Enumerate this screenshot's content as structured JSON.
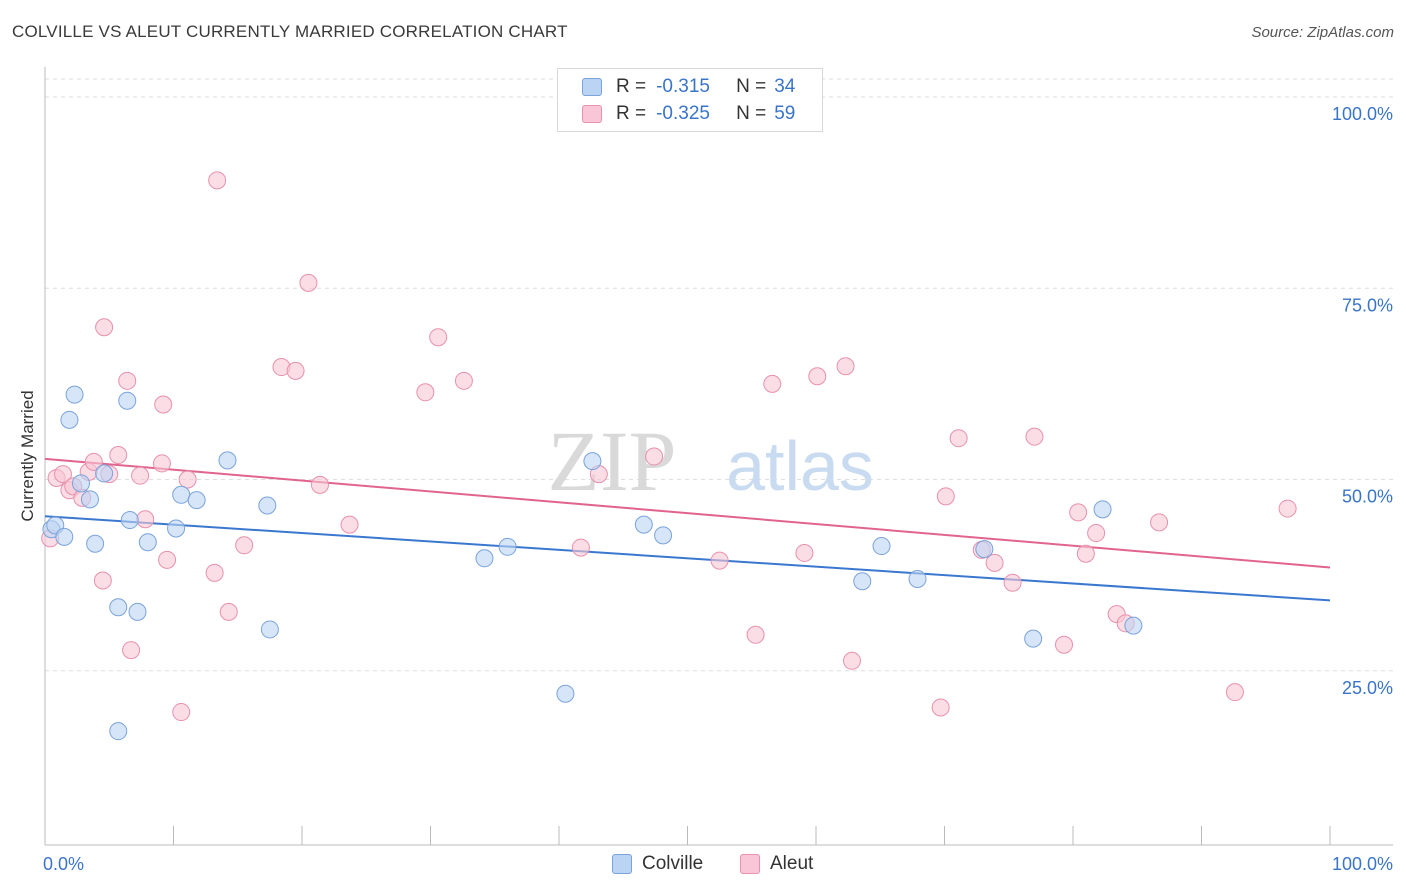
{
  "title": "COLVILLE VS ALEUT CURRENTLY MARRIED CORRELATION CHART",
  "source": "Source: ZipAtlas.com",
  "watermark": {
    "zip": "ZIP",
    "atlas": "atlas"
  },
  "legend": {
    "r_label": "R =",
    "n_label": "N =",
    "rows": [
      {
        "r": "-0.315",
        "n": "34"
      },
      {
        "r": "-0.325",
        "n": "59"
      }
    ]
  },
  "colors": {
    "colville_fill": "#bcd4f3",
    "colville_stroke": "#7aa3db",
    "colville_line": "#3a78cf",
    "aleut_fill": "#f8c6d6",
    "aleut_stroke": "#e891ad",
    "aleut_line": "#e0648d",
    "tick_label": "#3a74c9",
    "grid": "#dedede"
  },
  "chart_data": {
    "type": "scatter",
    "xlabel": "",
    "ylabel": "Currently Married",
    "xlim": [
      0,
      100
    ],
    "ylim": [
      0,
      100
    ],
    "x_tick_labels": [
      "0.0%",
      "100.0%"
    ],
    "y_ticks": [
      25,
      50,
      75,
      100
    ],
    "y_tick_labels": [
      "25.0%",
      "50.0%",
      "75.0%",
      "100.0%"
    ],
    "grid": true,
    "legend_position": "top-center",
    "series": [
      {
        "name": "Colville",
        "trend": [
          [
            0,
            45.2
          ],
          [
            100,
            34.2
          ]
        ],
        "points": [
          [
            0.5,
            43.5
          ],
          [
            0.8,
            44.0
          ],
          [
            1.5,
            42.5
          ],
          [
            1.9,
            57.8
          ],
          [
            2.3,
            61.1
          ],
          [
            2.8,
            49.5
          ],
          [
            3.5,
            47.4
          ],
          [
            3.9,
            41.6
          ],
          [
            4.6,
            50.8
          ],
          [
            5.7,
            33.3
          ],
          [
            5.7,
            17.1
          ],
          [
            6.4,
            60.3
          ],
          [
            6.6,
            44.7
          ],
          [
            7.2,
            32.7
          ],
          [
            8.0,
            41.8
          ],
          [
            10.2,
            43.6
          ],
          [
            10.6,
            48.0
          ],
          [
            11.8,
            47.3
          ],
          [
            14.2,
            52.5
          ],
          [
            17.3,
            46.6
          ],
          [
            17.5,
            30.4
          ],
          [
            34.2,
            39.7
          ],
          [
            36.0,
            41.2
          ],
          [
            40.5,
            22.0
          ],
          [
            42.6,
            52.4
          ],
          [
            46.6,
            44.1
          ],
          [
            48.1,
            42.7
          ],
          [
            63.6,
            36.7
          ],
          [
            65.1,
            41.3
          ],
          [
            67.9,
            37.0
          ],
          [
            73.1,
            40.9
          ],
          [
            76.9,
            29.2
          ],
          [
            82.3,
            46.1
          ],
          [
            84.7,
            30.9
          ]
        ]
      },
      {
        "name": "Aleut",
        "trend": [
          [
            0,
            52.7
          ],
          [
            100,
            38.5
          ]
        ],
        "points": [
          [
            0.4,
            42.3
          ],
          [
            0.9,
            50.2
          ],
          [
            1.4,
            50.7
          ],
          [
            1.9,
            48.6
          ],
          [
            2.2,
            49.1
          ],
          [
            2.9,
            47.6
          ],
          [
            3.4,
            51.0
          ],
          [
            3.8,
            52.3
          ],
          [
            4.5,
            36.8
          ],
          [
            4.6,
            69.9
          ],
          [
            5.0,
            50.7
          ],
          [
            5.7,
            53.2
          ],
          [
            6.4,
            62.9
          ],
          [
            6.7,
            27.7
          ],
          [
            7.4,
            50.5
          ],
          [
            7.8,
            44.8
          ],
          [
            9.5,
            39.5
          ],
          [
            9.2,
            59.8
          ],
          [
            9.1,
            52.1
          ],
          [
            10.6,
            19.6
          ],
          [
            11.1,
            50.0
          ],
          [
            13.2,
            37.8
          ],
          [
            13.4,
            89.1
          ],
          [
            14.3,
            32.7
          ],
          [
            15.5,
            41.4
          ],
          [
            18.4,
            64.7
          ],
          [
            19.5,
            64.2
          ],
          [
            20.5,
            75.7
          ],
          [
            21.4,
            49.3
          ],
          [
            23.7,
            44.1
          ],
          [
            29.6,
            61.4
          ],
          [
            30.6,
            68.6
          ],
          [
            32.6,
            62.9
          ],
          [
            41.7,
            41.1
          ],
          [
            43.1,
            50.7
          ],
          [
            47.4,
            53.0
          ],
          [
            52.5,
            39.4
          ],
          [
            55.3,
            29.7
          ],
          [
            56.6,
            62.5
          ],
          [
            59.1,
            40.4
          ],
          [
            60.1,
            63.5
          ],
          [
            62.3,
            64.8
          ],
          [
            62.8,
            26.3
          ],
          [
            69.7,
            20.2
          ],
          [
            70.1,
            47.8
          ],
          [
            71.1,
            55.4
          ],
          [
            72.9,
            40.8
          ],
          [
            73.9,
            39.1
          ],
          [
            75.3,
            36.5
          ],
          [
            77.0,
            55.6
          ],
          [
            79.3,
            28.4
          ],
          [
            80.4,
            45.7
          ],
          [
            81.0,
            40.3
          ],
          [
            81.8,
            43.0
          ],
          [
            83.4,
            32.4
          ],
          [
            84.1,
            31.2
          ],
          [
            86.7,
            44.4
          ],
          [
            92.6,
            22.2
          ],
          [
            96.7,
            46.2
          ]
        ]
      }
    ]
  }
}
